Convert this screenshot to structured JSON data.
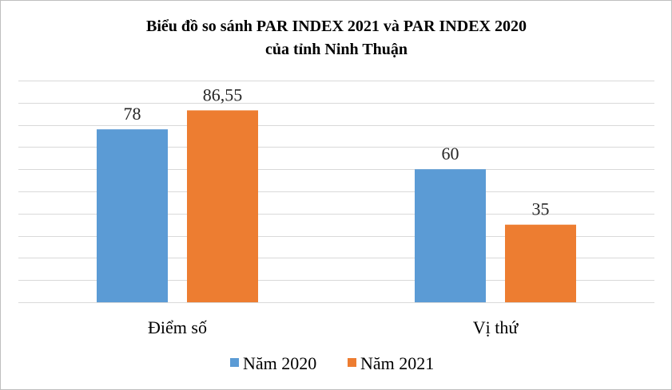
{
  "chart_data": {
    "type": "bar",
    "title_line1": "Biểu đồ so sánh PAR INDEX 2021 và PAR INDEX 2020",
    "title_line2": "của tỉnh Ninh Thuận",
    "categories": [
      "Điểm số",
      "Vị thứ"
    ],
    "series": [
      {
        "name": "Năm 2020",
        "values": [
          78,
          60
        ],
        "labels": [
          "78",
          "60"
        ],
        "color": "#5b9bd5"
      },
      {
        "name": "Năm 2021",
        "values": [
          86.55,
          35
        ],
        "labels": [
          "86,55",
          "35"
        ],
        "color": "#ed7d31"
      }
    ],
    "ylim": [
      0,
      100
    ],
    "grid": true,
    "legend_position": "bottom"
  }
}
